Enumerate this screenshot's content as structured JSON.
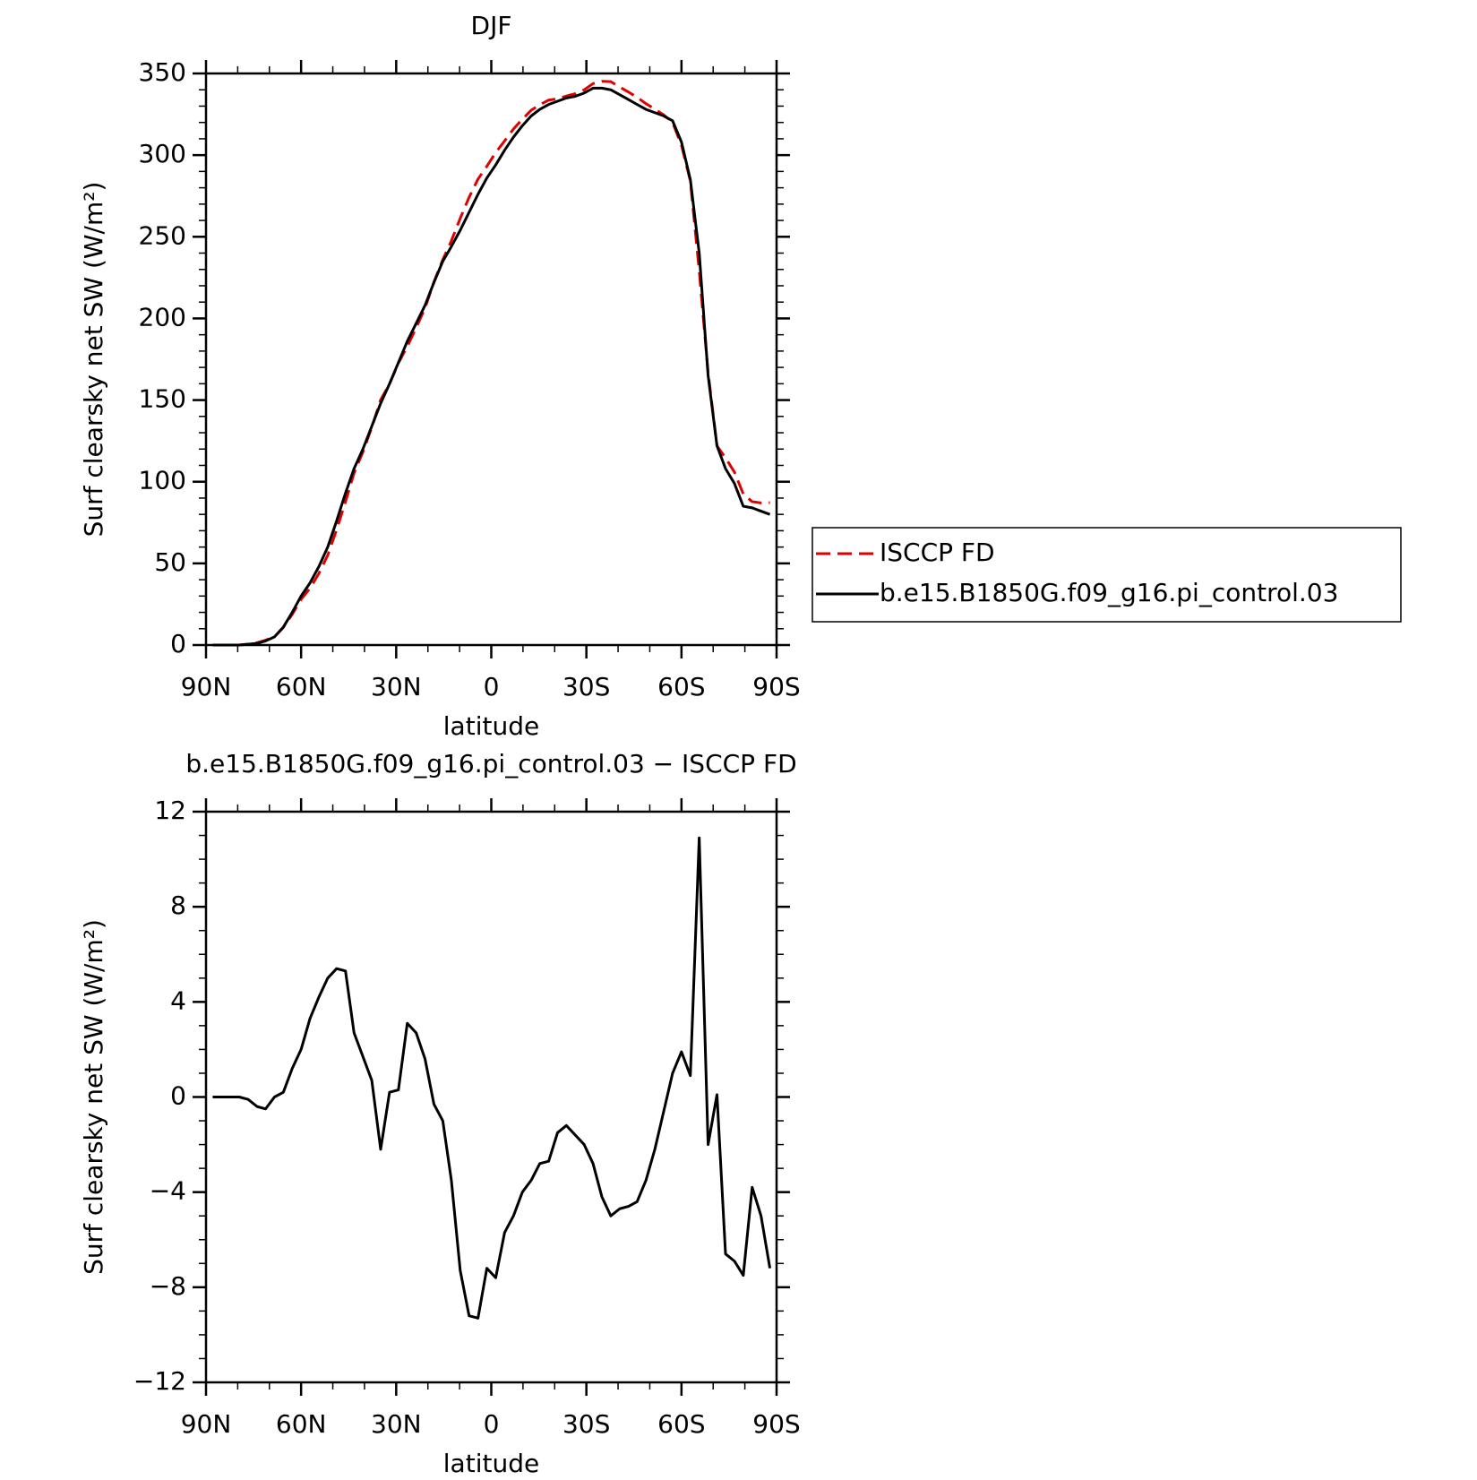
{
  "chart_data": [
    {
      "type": "line",
      "title": "DJF",
      "x_label": "latitude",
      "y_label": "Surf clearsky net SW (W/m²)",
      "x": [
        87.9,
        85.1,
        82.3,
        79.5,
        76.7,
        73.9,
        71.2,
        68.4,
        65.6,
        62.8,
        60.0,
        57.2,
        54.4,
        51.6,
        48.8,
        46.0,
        43.3,
        40.5,
        37.7,
        34.9,
        32.1,
        29.3,
        26.5,
        23.7,
        20.9,
        18.1,
        15.3,
        12.6,
        9.8,
        7.0,
        4.2,
        1.4,
        -1.4,
        -4.2,
        -7.0,
        -9.8,
        -12.6,
        -15.3,
        -18.1,
        -20.9,
        -23.7,
        -26.5,
        -29.3,
        -32.1,
        -34.9,
        -37.7,
        -40.5,
        -43.3,
        -46.0,
        -48.8,
        -51.6,
        -54.4,
        -57.2,
        -60.0,
        -62.8,
        -65.6,
        -68.4,
        -71.2,
        -73.9,
        -76.7,
        -79.5,
        -82.3,
        -85.1,
        -87.9
      ],
      "series": [
        {
          "name": "ISCCP FD",
          "color": "#e00000",
          "dash": "dashed",
          "values": [
            0,
            0,
            0,
            0,
            0.6,
            1.4,
            3,
            5,
            10.8,
            18.8,
            28,
            34.7,
            43.8,
            55,
            70.6,
            87.7,
            105.3,
            118.3,
            133.3,
            150.2,
            159.8,
            172.7,
            182.9,
            194.3,
            206.4,
            222.3,
            236,
            247.5,
            261.3,
            274.2,
            285.3,
            293.2,
            301.6,
            308.7,
            316,
            322,
            327.5,
            330.8,
            333.7,
            334.5,
            336.2,
            337.6,
            340,
            343.8,
            345.2,
            345,
            341.7,
            338.6,
            335.4,
            331.5,
            328.2,
            324.6,
            320,
            306.1,
            284.1,
            229.1,
            167,
            121.9,
            114.6,
            105.9,
            92.5,
            87.8,
            87,
            87.2
          ]
        },
        {
          "name": "b.e15.B1850G.f09_g16.pi_control.03",
          "color": "#000000",
          "dash": "solid",
          "values": [
            0,
            0,
            0,
            0,
            0.5,
            1,
            2.5,
            5,
            11,
            20,
            30,
            38,
            48,
            60,
            76,
            93,
            108,
            120,
            134,
            148,
            160,
            173,
            186,
            197,
            208,
            222,
            235,
            244,
            254,
            265,
            276,
            286,
            294,
            303,
            311,
            318,
            324,
            328,
            331,
            333,
            335,
            336,
            338,
            341,
            341,
            340,
            337,
            334,
            331,
            328,
            326,
            324,
            321,
            308,
            285,
            240,
            165,
            122,
            108,
            99,
            85,
            84,
            82,
            80
          ]
        }
      ],
      "xlim": [
        90,
        -90
      ],
      "xticks": [
        {
          "value": 90,
          "label": "90N"
        },
        {
          "value": 60,
          "label": "60N"
        },
        {
          "value": 30,
          "label": "30N"
        },
        0,
        {
          "value": -30,
          "label": "30S"
        },
        {
          "value": -60,
          "label": "60S"
        },
        {
          "value": -90,
          "label": "90S"
        }
      ],
      "ylim": [
        0,
        350
      ],
      "yticks": [
        0,
        50,
        100,
        150,
        200,
        250,
        300,
        350
      ],
      "legend": "right"
    },
    {
      "type": "line",
      "title": "b.e15.B1850G.f09_g16.pi_control.03 − ISCCP FD",
      "x_label": "latitude",
      "y_label": "Surf clearsky net SW (W/m²)",
      "x": [
        87.9,
        85.1,
        82.3,
        79.5,
        76.7,
        73.9,
        71.2,
        68.4,
        65.6,
        62.8,
        60.0,
        57.2,
        54.4,
        51.6,
        48.8,
        46.0,
        43.3,
        40.5,
        37.7,
        34.9,
        32.1,
        29.3,
        26.5,
        23.7,
        20.9,
        18.1,
        15.3,
        12.6,
        9.8,
        7.0,
        4.2,
        1.4,
        -1.4,
        -4.2,
        -7.0,
        -9.8,
        -12.6,
        -15.3,
        -18.1,
        -20.9,
        -23.7,
        -26.5,
        -29.3,
        -32.1,
        -34.9,
        -37.7,
        -40.5,
        -43.3,
        -46.0,
        -48.8,
        -51.6,
        -54.4,
        -57.2,
        -60.0,
        -62.8,
        -65.6,
        -68.4,
        -71.2,
        -73.9,
        -76.7,
        -79.5,
        -82.3,
        -85.1,
        -87.9
      ],
      "values": [
        0,
        0,
        0,
        0,
        -0.1,
        -0.4,
        -0.5,
        0,
        0.2,
        1.2,
        2,
        3.3,
        4.2,
        5,
        5.4,
        5.3,
        2.7,
        1.7,
        0.7,
        -2.2,
        0.2,
        0.3,
        3.1,
        2.7,
        1.6,
        -0.3,
        -1,
        -3.5,
        -7.3,
        -9.2,
        -9.3,
        -7.2,
        -7.6,
        -5.7,
        -5,
        -4,
        -3.5,
        -2.8,
        -2.7,
        -1.5,
        -1.2,
        -1.6,
        -2,
        -2.8,
        -4.2,
        -5,
        -4.7,
        -4.6,
        -4.4,
        -3.5,
        -2.2,
        -0.6,
        1,
        1.9,
        0.9,
        10.9,
        -2,
        0.1,
        -6.6,
        -6.9,
        -7.5,
        -3.8,
        -5,
        -7.2
      ],
      "color": "#000000",
      "xlim": [
        90,
        -90
      ],
      "xticks": [
        {
          "value": 90,
          "label": "90N"
        },
        {
          "value": 60,
          "label": "60N"
        },
        {
          "value": 30,
          "label": "30N"
        },
        0,
        {
          "value": -30,
          "label": "30S"
        },
        {
          "value": -60,
          "label": "60S"
        },
        {
          "value": -90,
          "label": "90S"
        }
      ],
      "ylim": [
        -12,
        12
      ],
      "yticks": [
        {
          "value": -12,
          "label": "−12"
        },
        {
          "value": -8,
          "label": "−8"
        },
        {
          "value": -4,
          "label": "−4"
        },
        0,
        4,
        8,
        12
      ]
    }
  ]
}
